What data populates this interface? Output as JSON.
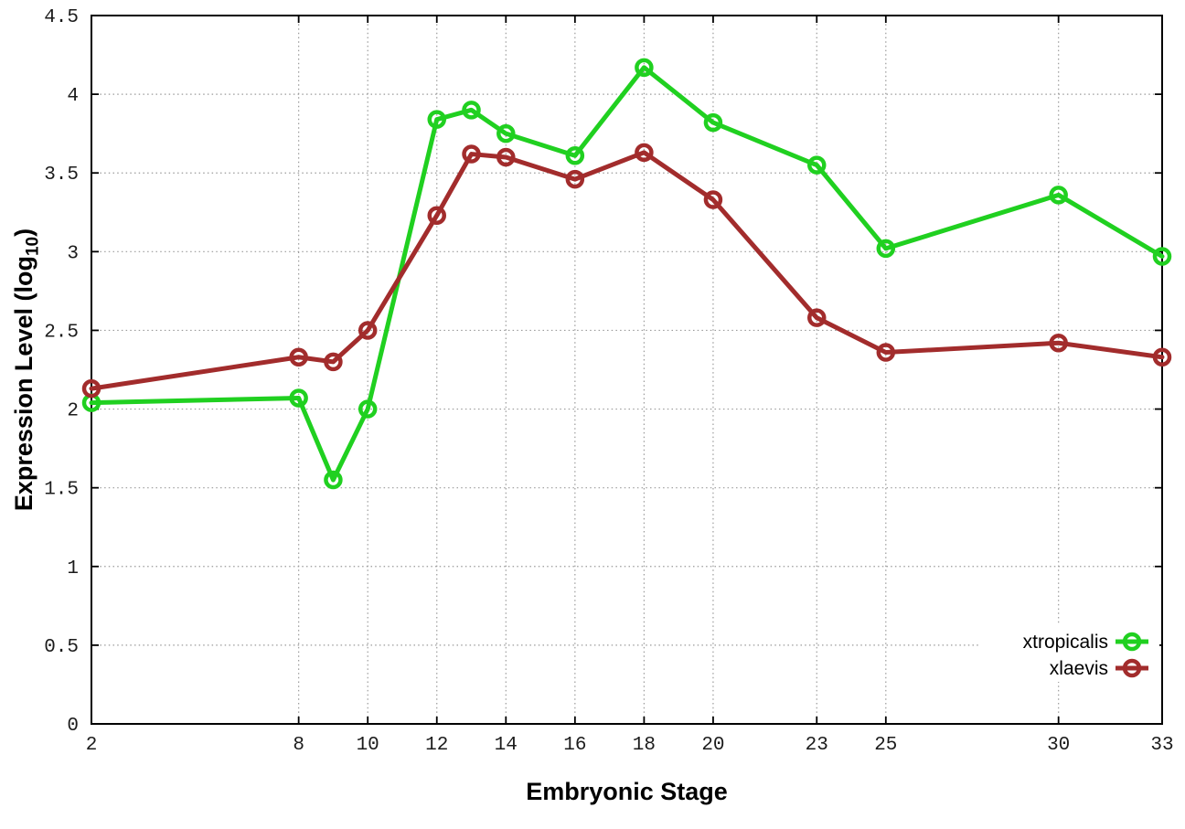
{
  "figure": {
    "background": "#ffffff",
    "border_color": "#000000",
    "grid_color": "#9a9a9a",
    "tick_label_color": "#1c1c1c"
  },
  "labels": {
    "xlabel": "Embryonic Stage",
    "ylabel_prefix": "Expression Level (log",
    "ylabel_sub": "10",
    "ylabel_suffix": ")"
  },
  "chart_data": {
    "type": "line",
    "title": "",
    "xlabel": "Embryonic Stage",
    "ylabel": "Expression Level (log10)",
    "x": [
      2,
      8,
      9,
      10,
      12,
      13,
      14,
      16,
      18,
      20,
      23,
      25,
      30,
      33
    ],
    "series": [
      {
        "name": "xtropicalis",
        "color": "#20d020",
        "marker": "open-circle",
        "values": [
          2.04,
          2.07,
          1.55,
          2.0,
          3.84,
          3.9,
          3.75,
          3.61,
          4.17,
          3.82,
          3.55,
          3.02,
          3.36,
          2.97
        ]
      },
      {
        "name": "xlaevis",
        "color": "#a22c2c",
        "marker": "open-circle",
        "values": [
          2.13,
          2.33,
          2.3,
          2.5,
          3.23,
          3.62,
          3.6,
          3.46,
          3.63,
          3.33,
          2.58,
          2.36,
          2.42,
          2.33
        ]
      }
    ],
    "xticks": [
      2,
      8,
      10,
      12,
      14,
      16,
      18,
      20,
      23,
      25,
      30,
      33
    ],
    "yticks": [
      "0",
      "0.5",
      "1",
      "1.5",
      "2",
      "2.5",
      "3",
      "3.5",
      "4",
      "4.5"
    ],
    "xlim": [
      2,
      33
    ],
    "ylim": [
      0,
      4.5
    ],
    "grid": true,
    "grid_style": "dotted",
    "legend_position": "bottom-right",
    "legend_opaque": true
  }
}
